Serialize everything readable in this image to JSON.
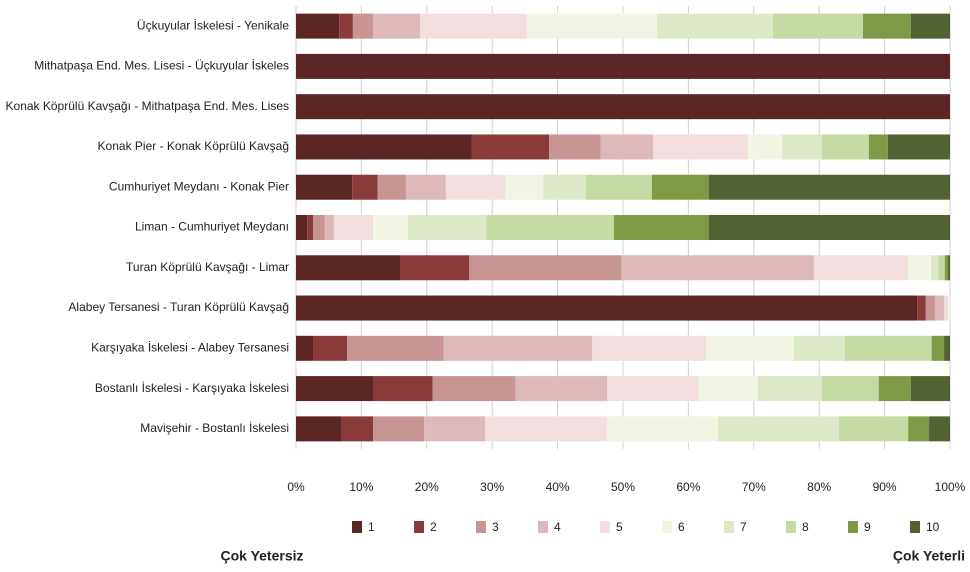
{
  "chart_data": {
    "type": "stacked-bar-horizontal",
    "categories": [
      "Üçkuyular İskelesi - Yenikale",
      "Mithatpaşa End. Mes. Lisesi - Üçkuyular İskeles",
      "Konak Köprülü Kavşağı - Mithatpaşa End. Mes. Lises",
      "Konak Pier - Konak Köprülü Kavşağ",
      "Cumhuriyet Meydanı - Konak Pier",
      "Liman - Cumhuriyet Meydanı",
      "Turan Köprülü Kavşağı - Limar",
      "Alabey Tersanesi - Turan Köprülü Kavşağ",
      "Karşıyaka İskelesi - Alabey Tersanesi",
      "Bostanlı İskelesi - Karşıyaka İskelesi",
      "Mavişehir - Bostanlı İskelesi"
    ],
    "series": [
      {
        "name": "1",
        "color": "#5c2626",
        "values": [
          6.6,
          100,
          100,
          26.9,
          8.6,
          1.7,
          15.9,
          95.0,
          2.6,
          11.9,
          7.0
        ]
      },
      {
        "name": "2",
        "color": "#8b3a3a",
        "values": [
          2.1,
          0,
          0,
          11.8,
          3.9,
          0.9,
          10.6,
          1.3,
          5.2,
          9.0,
          4.8
        ]
      },
      {
        "name": "3",
        "color": "#c99494",
        "values": [
          3.1,
          0,
          0,
          7.9,
          4.3,
          1.8,
          23.3,
          1.4,
          14.8,
          12.7,
          7.8
        ]
      },
      {
        "name": "4",
        "color": "#ddb9b9",
        "values": [
          7.2,
          0,
          0,
          8.0,
          6.1,
          1.4,
          29.4,
          1.4,
          22.7,
          14.0,
          9.3
        ]
      },
      {
        "name": "5",
        "color": "#f2dede",
        "values": [
          16.3,
          0,
          0,
          14.5,
          9.1,
          6.0,
          14.4,
          0.6,
          17.4,
          14.0,
          18.7
        ]
      },
      {
        "name": "6",
        "color": "#f1f4e2",
        "values": [
          19.9,
          0,
          0,
          5.2,
          5.8,
          5.3,
          3.5,
          0.3,
          13.4,
          9.0,
          16.9
        ]
      },
      {
        "name": "7",
        "color": "#dde9c6",
        "values": [
          17.7,
          0,
          0,
          6.1,
          6.5,
          12.0,
          1.1,
          0,
          7.8,
          9.8,
          18.5
        ]
      },
      {
        "name": "8",
        "color": "#c6daa3",
        "values": [
          13.8,
          0,
          0,
          7.2,
          10.1,
          19.5,
          1.0,
          0,
          13.3,
          8.7,
          10.6
        ]
      },
      {
        "name": "9",
        "color": "#7e9a46",
        "values": [
          7.3,
          0,
          0,
          2.9,
          8.7,
          14.5,
          0.5,
          0,
          1.9,
          4.9,
          3.2
        ]
      },
      {
        "name": "10",
        "color": "#526332",
        "values": [
          6.0,
          0,
          0,
          9.5,
          36.9,
          36.9,
          0.3,
          0,
          0.9,
          6.0,
          3.2
        ]
      }
    ],
    "xlim": [
      0,
      100
    ],
    "xticks": [
      {
        "value": 0,
        "label": "0%"
      },
      {
        "value": 10,
        "label": "10%"
      },
      {
        "value": 20,
        "label": "20%"
      },
      {
        "value": 30,
        "label": "30%"
      },
      {
        "value": 40,
        "label": "40%"
      },
      {
        "value": 50,
        "label": "50%"
      },
      {
        "value": 60,
        "label": "60%"
      },
      {
        "value": 70,
        "label": "70%"
      },
      {
        "value": 80,
        "label": "80%"
      },
      {
        "value": 90,
        "label": "90%"
      },
      {
        "value": 100,
        "label": "100%"
      }
    ],
    "grid": true,
    "annotations": [
      "Çok Yetersiz",
      "Çok Yeterli"
    ]
  }
}
